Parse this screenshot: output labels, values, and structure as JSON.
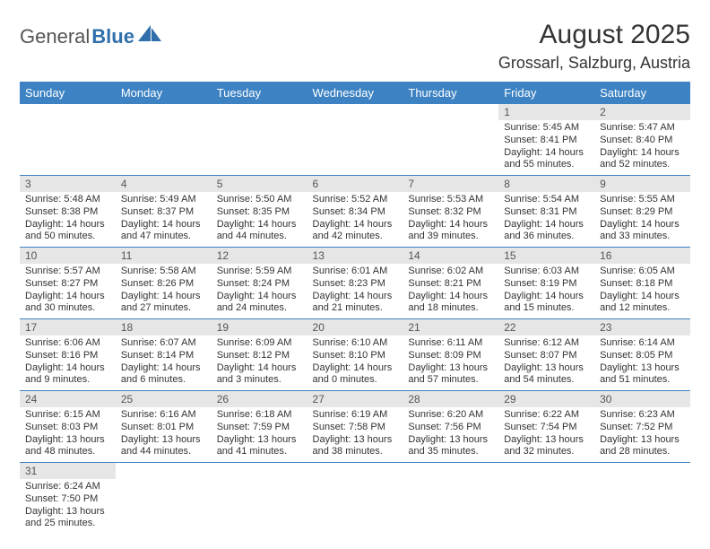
{
  "logo": {
    "brand_a": "General",
    "brand_b": "Blue"
  },
  "title": {
    "month": "August 2025",
    "location": "Grossarl, Salzburg, Austria"
  },
  "colors": {
    "header_bg": "#3d83c3",
    "header_text": "#ffffff",
    "daynum_bg": "#e6e6e6",
    "daynum_text": "#555555",
    "body_text": "#333333",
    "row_border": "#3d83c3",
    "logo_gray": "#555555",
    "logo_blue": "#2f6fab"
  },
  "day_labels": [
    "Sunday",
    "Monday",
    "Tuesday",
    "Wednesday",
    "Thursday",
    "Friday",
    "Saturday"
  ],
  "weeks": [
    [
      null,
      null,
      null,
      null,
      null,
      {
        "n": "1",
        "sr": "Sunrise: 5:45 AM",
        "ss": "Sunset: 8:41 PM",
        "d1": "Daylight: 14 hours",
        "d2": "and 55 minutes."
      },
      {
        "n": "2",
        "sr": "Sunrise: 5:47 AM",
        "ss": "Sunset: 8:40 PM",
        "d1": "Daylight: 14 hours",
        "d2": "and 52 minutes."
      }
    ],
    [
      {
        "n": "3",
        "sr": "Sunrise: 5:48 AM",
        "ss": "Sunset: 8:38 PM",
        "d1": "Daylight: 14 hours",
        "d2": "and 50 minutes."
      },
      {
        "n": "4",
        "sr": "Sunrise: 5:49 AM",
        "ss": "Sunset: 8:37 PM",
        "d1": "Daylight: 14 hours",
        "d2": "and 47 minutes."
      },
      {
        "n": "5",
        "sr": "Sunrise: 5:50 AM",
        "ss": "Sunset: 8:35 PM",
        "d1": "Daylight: 14 hours",
        "d2": "and 44 minutes."
      },
      {
        "n": "6",
        "sr": "Sunrise: 5:52 AM",
        "ss": "Sunset: 8:34 PM",
        "d1": "Daylight: 14 hours",
        "d2": "and 42 minutes."
      },
      {
        "n": "7",
        "sr": "Sunrise: 5:53 AM",
        "ss": "Sunset: 8:32 PM",
        "d1": "Daylight: 14 hours",
        "d2": "and 39 minutes."
      },
      {
        "n": "8",
        "sr": "Sunrise: 5:54 AM",
        "ss": "Sunset: 8:31 PM",
        "d1": "Daylight: 14 hours",
        "d2": "and 36 minutes."
      },
      {
        "n": "9",
        "sr": "Sunrise: 5:55 AM",
        "ss": "Sunset: 8:29 PM",
        "d1": "Daylight: 14 hours",
        "d2": "and 33 minutes."
      }
    ],
    [
      {
        "n": "10",
        "sr": "Sunrise: 5:57 AM",
        "ss": "Sunset: 8:27 PM",
        "d1": "Daylight: 14 hours",
        "d2": "and 30 minutes."
      },
      {
        "n": "11",
        "sr": "Sunrise: 5:58 AM",
        "ss": "Sunset: 8:26 PM",
        "d1": "Daylight: 14 hours",
        "d2": "and 27 minutes."
      },
      {
        "n": "12",
        "sr": "Sunrise: 5:59 AM",
        "ss": "Sunset: 8:24 PM",
        "d1": "Daylight: 14 hours",
        "d2": "and 24 minutes."
      },
      {
        "n": "13",
        "sr": "Sunrise: 6:01 AM",
        "ss": "Sunset: 8:23 PM",
        "d1": "Daylight: 14 hours",
        "d2": "and 21 minutes."
      },
      {
        "n": "14",
        "sr": "Sunrise: 6:02 AM",
        "ss": "Sunset: 8:21 PM",
        "d1": "Daylight: 14 hours",
        "d2": "and 18 minutes."
      },
      {
        "n": "15",
        "sr": "Sunrise: 6:03 AM",
        "ss": "Sunset: 8:19 PM",
        "d1": "Daylight: 14 hours",
        "d2": "and 15 minutes."
      },
      {
        "n": "16",
        "sr": "Sunrise: 6:05 AM",
        "ss": "Sunset: 8:18 PM",
        "d1": "Daylight: 14 hours",
        "d2": "and 12 minutes."
      }
    ],
    [
      {
        "n": "17",
        "sr": "Sunrise: 6:06 AM",
        "ss": "Sunset: 8:16 PM",
        "d1": "Daylight: 14 hours",
        "d2": "and 9 minutes."
      },
      {
        "n": "18",
        "sr": "Sunrise: 6:07 AM",
        "ss": "Sunset: 8:14 PM",
        "d1": "Daylight: 14 hours",
        "d2": "and 6 minutes."
      },
      {
        "n": "19",
        "sr": "Sunrise: 6:09 AM",
        "ss": "Sunset: 8:12 PM",
        "d1": "Daylight: 14 hours",
        "d2": "and 3 minutes."
      },
      {
        "n": "20",
        "sr": "Sunrise: 6:10 AM",
        "ss": "Sunset: 8:10 PM",
        "d1": "Daylight: 14 hours",
        "d2": "and 0 minutes."
      },
      {
        "n": "21",
        "sr": "Sunrise: 6:11 AM",
        "ss": "Sunset: 8:09 PM",
        "d1": "Daylight: 13 hours",
        "d2": "and 57 minutes."
      },
      {
        "n": "22",
        "sr": "Sunrise: 6:12 AM",
        "ss": "Sunset: 8:07 PM",
        "d1": "Daylight: 13 hours",
        "d2": "and 54 minutes."
      },
      {
        "n": "23",
        "sr": "Sunrise: 6:14 AM",
        "ss": "Sunset: 8:05 PM",
        "d1": "Daylight: 13 hours",
        "d2": "and 51 minutes."
      }
    ],
    [
      {
        "n": "24",
        "sr": "Sunrise: 6:15 AM",
        "ss": "Sunset: 8:03 PM",
        "d1": "Daylight: 13 hours",
        "d2": "and 48 minutes."
      },
      {
        "n": "25",
        "sr": "Sunrise: 6:16 AM",
        "ss": "Sunset: 8:01 PM",
        "d1": "Daylight: 13 hours",
        "d2": "and 44 minutes."
      },
      {
        "n": "26",
        "sr": "Sunrise: 6:18 AM",
        "ss": "Sunset: 7:59 PM",
        "d1": "Daylight: 13 hours",
        "d2": "and 41 minutes."
      },
      {
        "n": "27",
        "sr": "Sunrise: 6:19 AM",
        "ss": "Sunset: 7:58 PM",
        "d1": "Daylight: 13 hours",
        "d2": "and 38 minutes."
      },
      {
        "n": "28",
        "sr": "Sunrise: 6:20 AM",
        "ss": "Sunset: 7:56 PM",
        "d1": "Daylight: 13 hours",
        "d2": "and 35 minutes."
      },
      {
        "n": "29",
        "sr": "Sunrise: 6:22 AM",
        "ss": "Sunset: 7:54 PM",
        "d1": "Daylight: 13 hours",
        "d2": "and 32 minutes."
      },
      {
        "n": "30",
        "sr": "Sunrise: 6:23 AM",
        "ss": "Sunset: 7:52 PM",
        "d1": "Daylight: 13 hours",
        "d2": "and 28 minutes."
      }
    ],
    [
      {
        "n": "31",
        "sr": "Sunrise: 6:24 AM",
        "ss": "Sunset: 7:50 PM",
        "d1": "Daylight: 13 hours",
        "d2": "and 25 minutes."
      },
      null,
      null,
      null,
      null,
      null,
      null
    ]
  ]
}
